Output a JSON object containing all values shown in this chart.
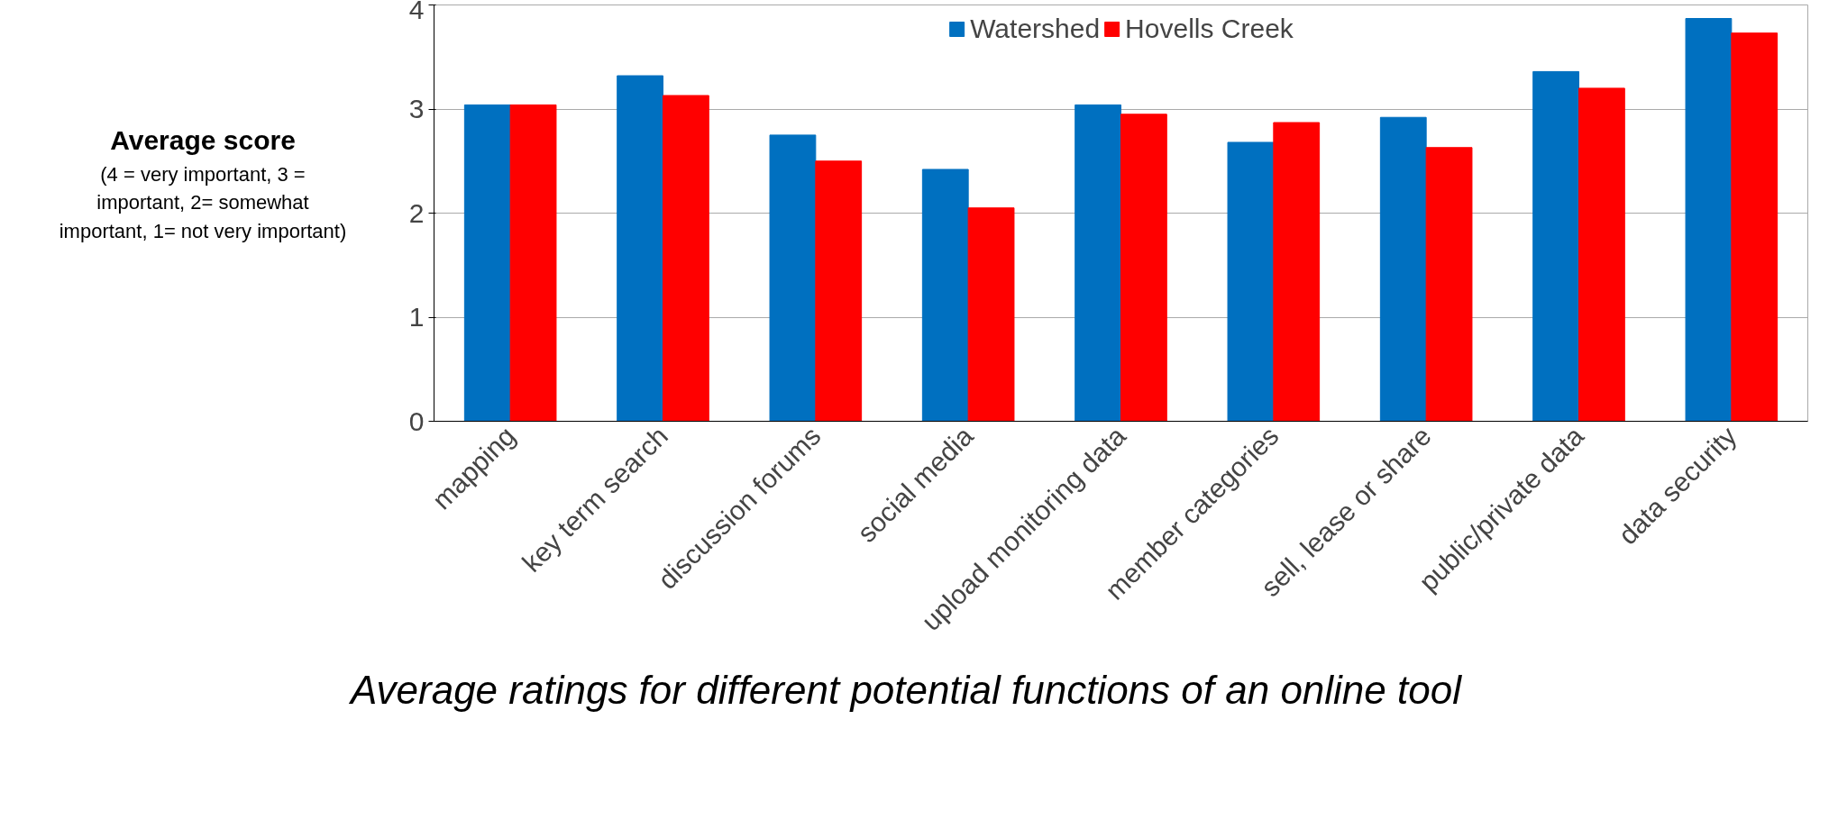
{
  "chart_data": {
    "type": "bar",
    "ylabel": "Average score",
    "annotations": [
      "(4 = very important, 3 = important, 2= somewhat important, 1= not very important)",
      "Average ratings for different potential functions of an online tool"
    ],
    "categories": [
      "mapping",
      "key term search",
      "discussion forums",
      "social media",
      "upload monitoring data",
      "member categories",
      "sell, lease or share",
      "public/private data",
      "data security"
    ],
    "series": [
      {
        "name": "Watershed",
        "color": "#0070c0",
        "values": [
          3.04,
          3.32,
          2.75,
          2.42,
          3.04,
          2.68,
          2.92,
          3.36,
          3.87
        ]
      },
      {
        "name": "Hovells Creek",
        "color": "#ff0000",
        "values": [
          3.04,
          3.13,
          2.5,
          2.05,
          2.95,
          2.87,
          2.63,
          3.2,
          3.73
        ]
      }
    ],
    "ylim": [
      0,
      4
    ],
    "yticks": [
      0,
      1,
      2,
      3,
      4
    ],
    "grid": "y",
    "legend": "top"
  }
}
